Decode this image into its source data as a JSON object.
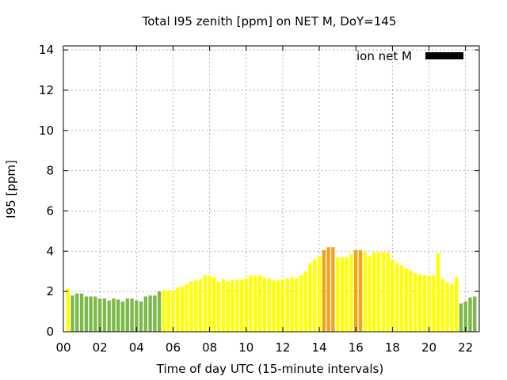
{
  "chart_data": {
    "type": "bar",
    "title": "Total I95 zenith [ppm] on NET M, DoY=145",
    "xlabel": "Time of day UTC (15-minute intervals)",
    "ylabel": "I95 [ppm]",
    "ylim": [
      0,
      14.2
    ],
    "yticks": [
      "0",
      "2",
      "4",
      "6",
      "8",
      "10",
      "12",
      "14"
    ],
    "xlim": [
      0,
      22.75
    ],
    "xticks": [
      "00",
      "02",
      "04",
      "06",
      "08",
      "10",
      "12",
      "14",
      "16",
      "18",
      "20",
      "22"
    ],
    "grid": true,
    "legend": {
      "label": "ion net M",
      "position": "top-right",
      "color": "#000000"
    },
    "bin_hours": 0.25,
    "bars": [
      {
        "t": 0.25,
        "v": 2.15,
        "c": "#ffff00"
      },
      {
        "t": 0.5,
        "v": 1.8,
        "c": "#7cb84a"
      },
      {
        "t": 0.75,
        "v": 1.9,
        "c": "#7cb84a"
      },
      {
        "t": 1.0,
        "v": 1.9,
        "c": "#7cb84a"
      },
      {
        "t": 1.25,
        "v": 1.75,
        "c": "#7cb84a"
      },
      {
        "t": 1.5,
        "v": 1.75,
        "c": "#7cb84a"
      },
      {
        "t": 1.75,
        "v": 1.75,
        "c": "#7cb84a"
      },
      {
        "t": 2.0,
        "v": 1.65,
        "c": "#7cb84a"
      },
      {
        "t": 2.25,
        "v": 1.65,
        "c": "#7cb84a"
      },
      {
        "t": 2.5,
        "v": 1.55,
        "c": "#7cb84a"
      },
      {
        "t": 2.75,
        "v": 1.65,
        "c": "#7cb84a"
      },
      {
        "t": 3.0,
        "v": 1.6,
        "c": "#7cb84a"
      },
      {
        "t": 3.25,
        "v": 1.5,
        "c": "#7cb84a"
      },
      {
        "t": 3.5,
        "v": 1.65,
        "c": "#7cb84a"
      },
      {
        "t": 3.75,
        "v": 1.65,
        "c": "#7cb84a"
      },
      {
        "t": 4.0,
        "v": 1.55,
        "c": "#7cb84a"
      },
      {
        "t": 4.25,
        "v": 1.5,
        "c": "#7cb84a"
      },
      {
        "t": 4.5,
        "v": 1.75,
        "c": "#7cb84a"
      },
      {
        "t": 4.75,
        "v": 1.8,
        "c": "#7cb84a"
      },
      {
        "t": 5.0,
        "v": 1.8,
        "c": "#7cb84a"
      },
      {
        "t": 5.25,
        "v": 2.0,
        "c": "#7cb84a"
      },
      {
        "t": 5.5,
        "v": 2.05,
        "c": "#ffff00"
      },
      {
        "t": 5.75,
        "v": 2.05,
        "c": "#ffff00"
      },
      {
        "t": 6.0,
        "v": 2.05,
        "c": "#ffff00"
      },
      {
        "t": 6.25,
        "v": 2.2,
        "c": "#ffff00"
      },
      {
        "t": 6.5,
        "v": 2.25,
        "c": "#ffff00"
      },
      {
        "t": 6.75,
        "v": 2.35,
        "c": "#ffff00"
      },
      {
        "t": 7.0,
        "v": 2.5,
        "c": "#ffff00"
      },
      {
        "t": 7.25,
        "v": 2.55,
        "c": "#ffff00"
      },
      {
        "t": 7.5,
        "v": 2.6,
        "c": "#ffff00"
      },
      {
        "t": 7.75,
        "v": 2.8,
        "c": "#ffff00"
      },
      {
        "t": 8.0,
        "v": 2.8,
        "c": "#ffff00"
      },
      {
        "t": 8.25,
        "v": 2.7,
        "c": "#ffff00"
      },
      {
        "t": 8.5,
        "v": 2.5,
        "c": "#ffff00"
      },
      {
        "t": 8.75,
        "v": 2.6,
        "c": "#ffff00"
      },
      {
        "t": 9.0,
        "v": 2.5,
        "c": "#ffff00"
      },
      {
        "t": 9.25,
        "v": 2.55,
        "c": "#ffff00"
      },
      {
        "t": 9.5,
        "v": 2.6,
        "c": "#ffff00"
      },
      {
        "t": 9.75,
        "v": 2.6,
        "c": "#ffff00"
      },
      {
        "t": 10.0,
        "v": 2.65,
        "c": "#ffff00"
      },
      {
        "t": 10.25,
        "v": 2.8,
        "c": "#ffff00"
      },
      {
        "t": 10.5,
        "v": 2.8,
        "c": "#ffff00"
      },
      {
        "t": 10.75,
        "v": 2.8,
        "c": "#ffff00"
      },
      {
        "t": 11.0,
        "v": 2.7,
        "c": "#ffff00"
      },
      {
        "t": 11.25,
        "v": 2.65,
        "c": "#ffff00"
      },
      {
        "t": 11.5,
        "v": 2.55,
        "c": "#ffff00"
      },
      {
        "t": 11.75,
        "v": 2.55,
        "c": "#ffff00"
      },
      {
        "t": 12.0,
        "v": 2.6,
        "c": "#ffff00"
      },
      {
        "t": 12.25,
        "v": 2.65,
        "c": "#ffff00"
      },
      {
        "t": 12.5,
        "v": 2.7,
        "c": "#ffff00"
      },
      {
        "t": 12.75,
        "v": 2.65,
        "c": "#ffff00"
      },
      {
        "t": 13.0,
        "v": 2.8,
        "c": "#ffff00"
      },
      {
        "t": 13.25,
        "v": 3.0,
        "c": "#ffff00"
      },
      {
        "t": 13.5,
        "v": 3.4,
        "c": "#ffff00"
      },
      {
        "t": 13.75,
        "v": 3.6,
        "c": "#ffff00"
      },
      {
        "t": 14.0,
        "v": 3.75,
        "c": "#ffff00"
      },
      {
        "t": 14.25,
        "v": 4.05,
        "c": "#f5a11a"
      },
      {
        "t": 14.5,
        "v": 4.2,
        "c": "#f5a11a"
      },
      {
        "t": 14.75,
        "v": 4.2,
        "c": "#f5a11a"
      },
      {
        "t": 15.0,
        "v": 3.7,
        "c": "#ffff00"
      },
      {
        "t": 15.25,
        "v": 3.7,
        "c": "#ffff00"
      },
      {
        "t": 15.5,
        "v": 3.7,
        "c": "#ffff00"
      },
      {
        "t": 15.75,
        "v": 3.85,
        "c": "#ffff00"
      },
      {
        "t": 16.0,
        "v": 4.05,
        "c": "#f5a11a"
      },
      {
        "t": 16.25,
        "v": 4.05,
        "c": "#f5a11a"
      },
      {
        "t": 16.5,
        "v": 3.95,
        "c": "#ffff00"
      },
      {
        "t": 16.75,
        "v": 3.75,
        "c": "#ffff00"
      },
      {
        "t": 17.0,
        "v": 3.95,
        "c": "#ffff00"
      },
      {
        "t": 17.25,
        "v": 3.95,
        "c": "#ffff00"
      },
      {
        "t": 17.5,
        "v": 3.95,
        "c": "#ffff00"
      },
      {
        "t": 17.75,
        "v": 3.95,
        "c": "#ffff00"
      },
      {
        "t": 18.0,
        "v": 3.6,
        "c": "#ffff00"
      },
      {
        "t": 18.25,
        "v": 3.4,
        "c": "#ffff00"
      },
      {
        "t": 18.5,
        "v": 3.3,
        "c": "#ffff00"
      },
      {
        "t": 18.75,
        "v": 3.15,
        "c": "#ffff00"
      },
      {
        "t": 19.0,
        "v": 3.05,
        "c": "#ffff00"
      },
      {
        "t": 19.25,
        "v": 2.9,
        "c": "#ffff00"
      },
      {
        "t": 19.5,
        "v": 2.85,
        "c": "#ffff00"
      },
      {
        "t": 19.75,
        "v": 2.8,
        "c": "#ffff00"
      },
      {
        "t": 20.0,
        "v": 2.8,
        "c": "#ffff00"
      },
      {
        "t": 20.25,
        "v": 2.8,
        "c": "#ffff00"
      },
      {
        "t": 20.5,
        "v": 3.9,
        "c": "#ffff00"
      },
      {
        "t": 20.75,
        "v": 2.65,
        "c": "#ffff00"
      },
      {
        "t": 21.0,
        "v": 2.45,
        "c": "#ffff00"
      },
      {
        "t": 21.25,
        "v": 2.35,
        "c": "#ffff00"
      },
      {
        "t": 21.5,
        "v": 2.7,
        "c": "#ffff00"
      },
      {
        "t": 21.75,
        "v": 1.4,
        "c": "#7cb84a"
      },
      {
        "t": 22.0,
        "v": 1.5,
        "c": "#7cb84a"
      },
      {
        "t": 22.25,
        "v": 1.7,
        "c": "#7cb84a"
      },
      {
        "t": 22.5,
        "v": 1.75,
        "c": "#7cb84a"
      }
    ]
  }
}
